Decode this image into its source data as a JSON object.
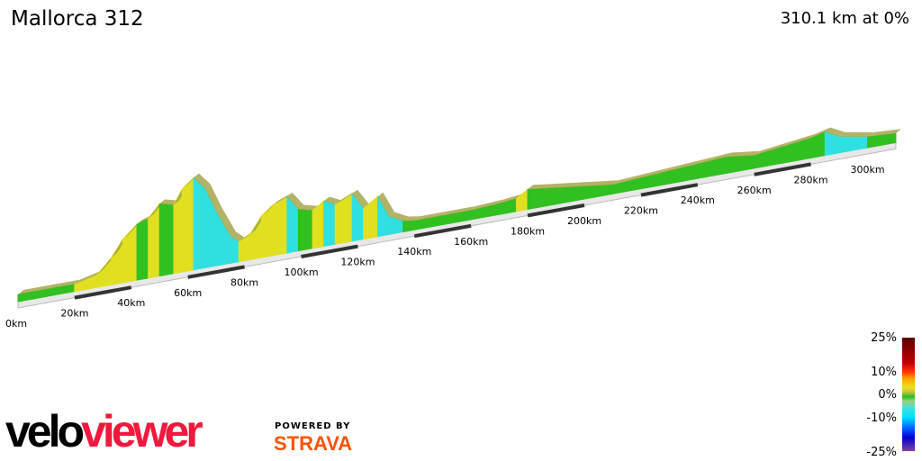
{
  "title": "Mallorca 312",
  "summary": "310.1 km at 0%",
  "chart_data": {
    "type": "area",
    "title": "Mallorca 312",
    "x_ticks": [
      "0km",
      "20km",
      "40km",
      "60km",
      "80km",
      "100km",
      "120km",
      "140km",
      "160km",
      "180km",
      "200km",
      "220km",
      "240km",
      "260km",
      "280km",
      "300km"
    ],
    "xlim": [
      0,
      310.1
    ],
    "legend": {
      "title": "",
      "labels": [
        "25%",
        "10%",
        "0%",
        "-10%",
        "-25%"
      ],
      "placement": "bottom-right"
    },
    "colors": {
      "climb": "#e0e020",
      "flat": "#30c020",
      "descent": "#30e0e0"
    }
  },
  "branding": {
    "logo_velo": "velo",
    "logo_viewer": "viewer",
    "powered": "POWERED BY",
    "strava": "STRAVA"
  }
}
